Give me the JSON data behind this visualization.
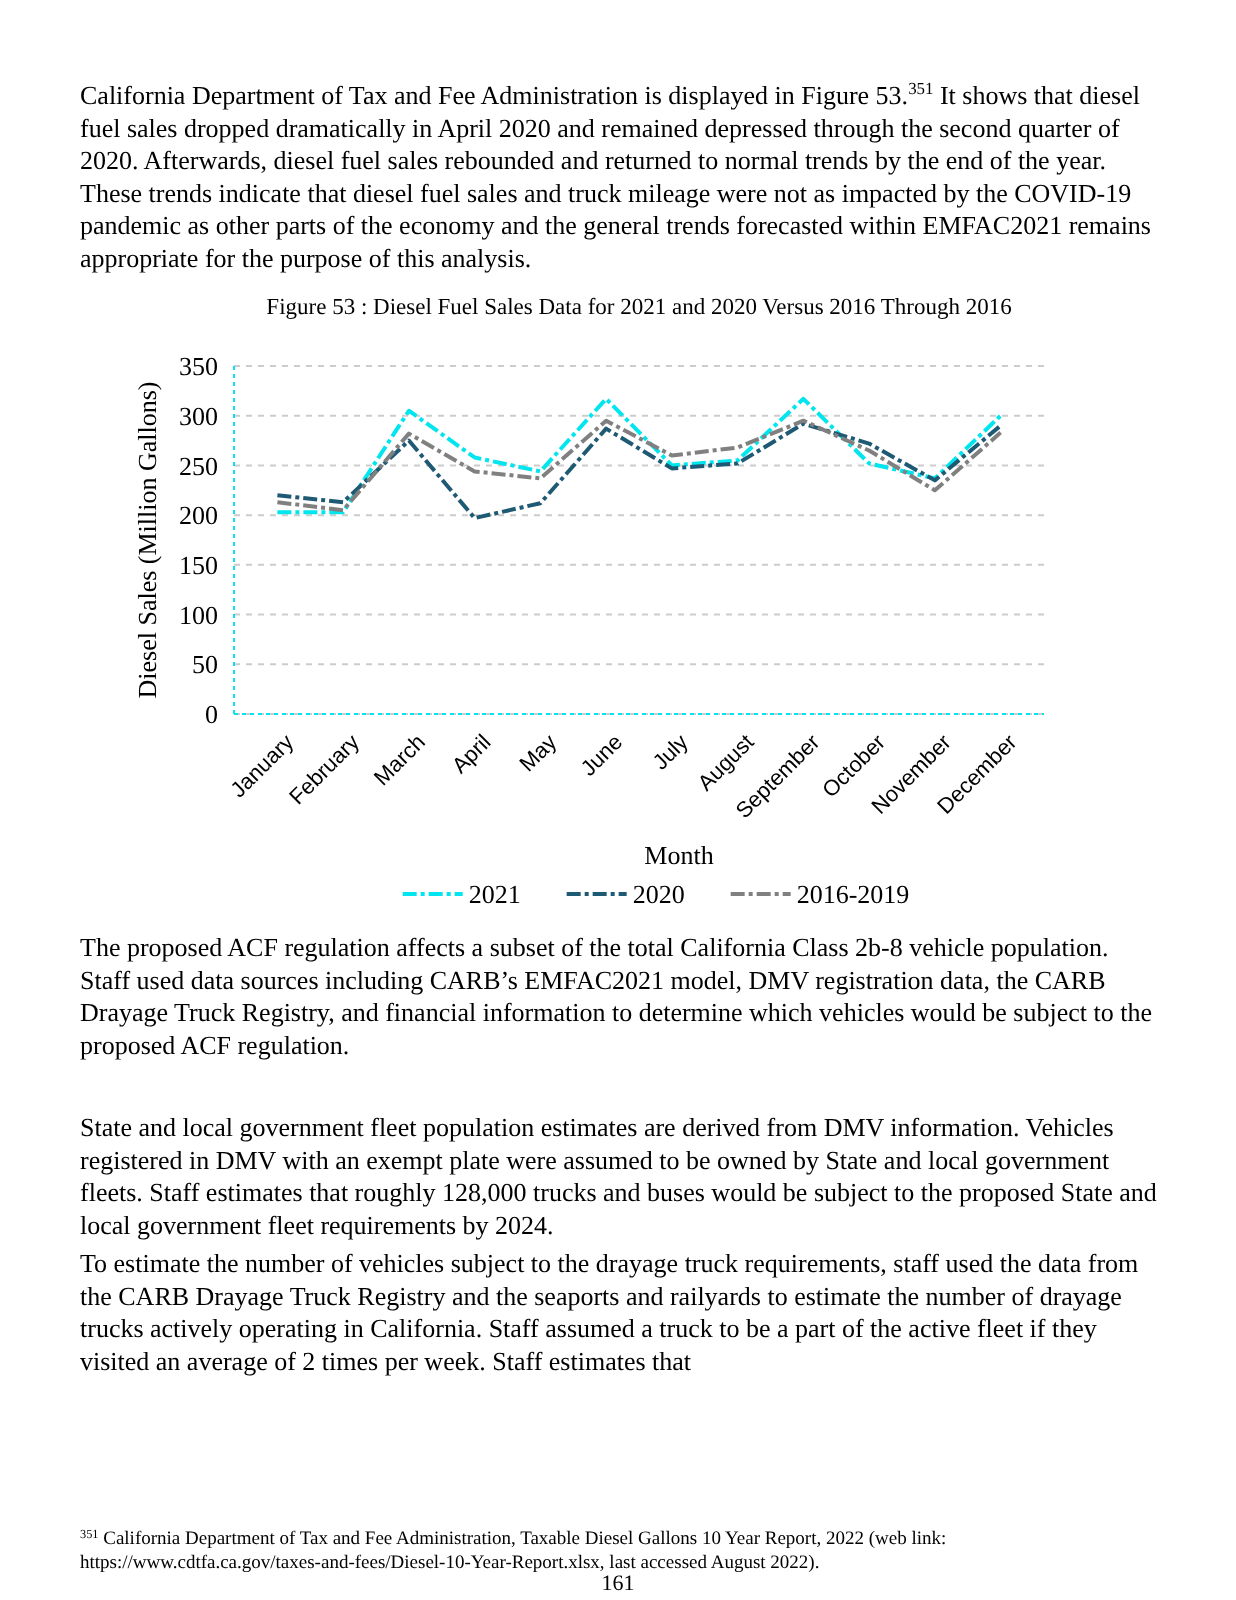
{
  "chart_data": {
    "type": "line",
    "title": "Figure 53 : Diesel Fuel Sales Data for 2021 and 2020 Versus 2016 Through 2016",
    "xlabel": "Month",
    "ylabel": "Diesel Sales (Million Gallons)",
    "categories": [
      "January",
      "February",
      "March",
      "April",
      "May",
      "June",
      "July",
      "August",
      "September",
      "October",
      "November",
      "December"
    ],
    "series": [
      {
        "name": "2021",
        "color": "#00e5ee",
        "line_style": "dashed",
        "values": [
          203,
          203,
          305,
          258,
          244,
          317,
          250,
          255,
          317,
          252,
          237,
          300
        ]
      },
      {
        "name": "2020",
        "color": "#1f5a75",
        "line_style": "dashed",
        "values": [
          220,
          213,
          275,
          197,
          212,
          287,
          247,
          252,
          292,
          272,
          235,
          290
        ]
      },
      {
        "name": "2016-2019",
        "color": "#808080",
        "line_style": "dashed",
        "values": [
          213,
          205,
          282,
          244,
          237,
          295,
          260,
          268,
          295,
          265,
          225,
          283
        ]
      }
    ],
    "ylim": [
      0,
      350
    ],
    "yticks": [
      0,
      50,
      100,
      150,
      200,
      250,
      300,
      350
    ],
    "grid": "y",
    "legend": "bottom",
    "marker": "none",
    "annotations": [
      "California Department of Tax and Fee Administration is displayed in Figure 53.$^{351}$ It shows that diesel fuel sales dropped dramatically in April 2020 and remained depressed through the second quarter of 2020. Afterwards, diesel fuel sales rebounded and returned to normal trends by the end of the year. These trends indicate that diesel fuel sales and truck mileage were not as impacted by the COVID-19 pandemic as other parts of the economy and the general trends forecasted within EMFAC2021 remains appropriate for the purpose of this analysis.",
      "The proposed ACF regulation affects a subset of the total California Class 2b-8 vehicle population. Staff used data sources including CARB’s EMFAC2021 model, DMV registration data, the CARB Drayage Truck Registry, and financial information to determine which vehicles would be subject to the proposed ACF regulation.",
      "State and local government fleet population estimates are derived from DMV information. Vehicles registered in DMV with an exempt plate were assumed to be owned by State and local government fleets. Staff estimates that roughly 128,000 trucks and buses would be subject to the proposed State and local government fleet requirements by 2024.",
      "To estimate the number of vehicles subject to the drayage truck requirements, staff used the data from the CARB Drayage Truck Registry and the seaports and railyards to estimate the number of drayage trucks actively operating in California. Staff assumed a truck to be a part of the active fleet if they visited an average of 2 times per week. Staff estimates that",
      "$^{351}$ California Department of Tax and Fee Administration, Taxable Diesel Gallons 10 Year Report, 2022 (web link: https://www.cdtfa.ca.gov/taxes-and-fees/Diesel-10-Year-Report.xlsx, last accessed August 2022).",
      "161"
    ]
  }
}
